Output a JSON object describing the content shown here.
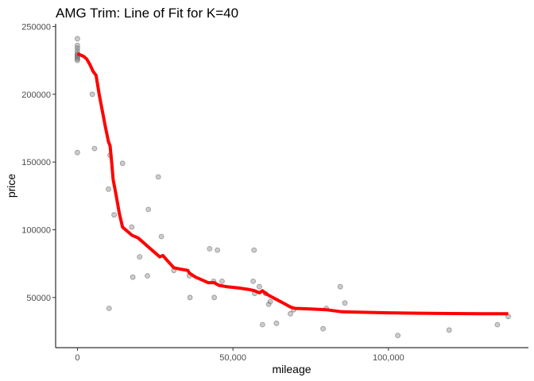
{
  "chart_data": {
    "type": "scatter",
    "title": "AMG Trim: Line of Fit for K=40",
    "xlabel": "mileage",
    "ylabel": "price",
    "xlim": [
      -7000,
      145000
    ],
    "ylim": [
      13000,
      252000
    ],
    "x_ticks": [
      0,
      50000,
      100000
    ],
    "x_tick_labels": [
      "0",
      "50,000",
      "100,000"
    ],
    "y_ticks": [
      50000,
      100000,
      150000,
      200000,
      250000
    ],
    "y_tick_labels": [
      "50000",
      "100000",
      "150000",
      "200000",
      "250000"
    ],
    "grid": false,
    "colors": {
      "points": "#808080",
      "fit_line": "#ff0000"
    },
    "series": [
      {
        "type": "scatter",
        "points": [
          [
            0,
            241000
          ],
          [
            0,
            236000
          ],
          [
            0,
            234000
          ],
          [
            0,
            232000
          ],
          [
            0,
            230000
          ],
          [
            0,
            229000
          ],
          [
            0,
            228000
          ],
          [
            0,
            227000
          ],
          [
            0,
            226000
          ],
          [
            0,
            225000
          ],
          [
            0,
            157000
          ],
          [
            4800,
            200000
          ],
          [
            5500,
            160000
          ],
          [
            10000,
            130000
          ],
          [
            10200,
            42000
          ],
          [
            10500,
            155000
          ],
          [
            11800,
            111000
          ],
          [
            14500,
            149000
          ],
          [
            17500,
            102000
          ],
          [
            17800,
            65000
          ],
          [
            20000,
            80000
          ],
          [
            22500,
            66000
          ],
          [
            22800,
            115000
          ],
          [
            26000,
            139000
          ],
          [
            27000,
            95000
          ],
          [
            31000,
            70000
          ],
          [
            36000,
            66000
          ],
          [
            36200,
            50000
          ],
          [
            42500,
            86000
          ],
          [
            43800,
            62000
          ],
          [
            44000,
            50000
          ],
          [
            45000,
            85000
          ],
          [
            46500,
            62000
          ],
          [
            56500,
            62000
          ],
          [
            56800,
            85000
          ],
          [
            57000,
            53000
          ],
          [
            58500,
            58000
          ],
          [
            59500,
            30000
          ],
          [
            60500,
            53000
          ],
          [
            61500,
            45000
          ],
          [
            62000,
            47000
          ],
          [
            64000,
            31000
          ],
          [
            68500,
            38000
          ],
          [
            69500,
            41000
          ],
          [
            79000,
            27000
          ],
          [
            80000,
            42000
          ],
          [
            84500,
            58000
          ],
          [
            86000,
            46000
          ],
          [
            103000,
            22000
          ],
          [
            119500,
            26000
          ],
          [
            135000,
            30000
          ],
          [
            138500,
            36000
          ]
        ]
      },
      {
        "type": "line",
        "points": [
          [
            0,
            230000
          ],
          [
            2000,
            228000
          ],
          [
            3000,
            226000
          ],
          [
            4000,
            222000
          ],
          [
            5000,
            217000
          ],
          [
            6000,
            214000
          ],
          [
            7000,
            200000
          ],
          [
            8000,
            188000
          ],
          [
            9000,
            176000
          ],
          [
            10000,
            165000
          ],
          [
            10500,
            162000
          ],
          [
            11000,
            150000
          ],
          [
            11500,
            137000
          ],
          [
            12500,
            125000
          ],
          [
            13500,
            112000
          ],
          [
            14500,
            102000
          ],
          [
            15500,
            100000
          ],
          [
            17500,
            96000
          ],
          [
            19500,
            94000
          ],
          [
            21000,
            91000
          ],
          [
            23000,
            87000
          ],
          [
            24500,
            84000
          ],
          [
            25500,
            82000
          ],
          [
            26500,
            80000
          ],
          [
            27500,
            81000
          ],
          [
            29000,
            77000
          ],
          [
            31000,
            72000
          ],
          [
            33000,
            71000
          ],
          [
            35500,
            70000
          ],
          [
            36000,
            68000
          ],
          [
            38000,
            65000
          ],
          [
            40000,
            63000
          ],
          [
            42000,
            61000
          ],
          [
            44000,
            61000
          ],
          [
            45500,
            59000
          ],
          [
            48000,
            58000
          ],
          [
            50000,
            57500
          ],
          [
            52000,
            57000
          ],
          [
            55000,
            56000
          ],
          [
            57000,
            55000
          ],
          [
            58500,
            53500
          ],
          [
            59500,
            55000
          ],
          [
            60500,
            53000
          ],
          [
            62000,
            51000
          ],
          [
            64500,
            48000
          ],
          [
            66500,
            45500
          ],
          [
            68500,
            43000
          ],
          [
            70000,
            42000
          ],
          [
            75000,
            41500
          ],
          [
            80000,
            41000
          ],
          [
            85000,
            39500
          ],
          [
            90000,
            39200
          ],
          [
            100000,
            38700
          ],
          [
            110000,
            38400
          ],
          [
            120000,
            38200
          ],
          [
            130000,
            38100
          ],
          [
            138500,
            38000
          ]
        ]
      }
    ]
  }
}
